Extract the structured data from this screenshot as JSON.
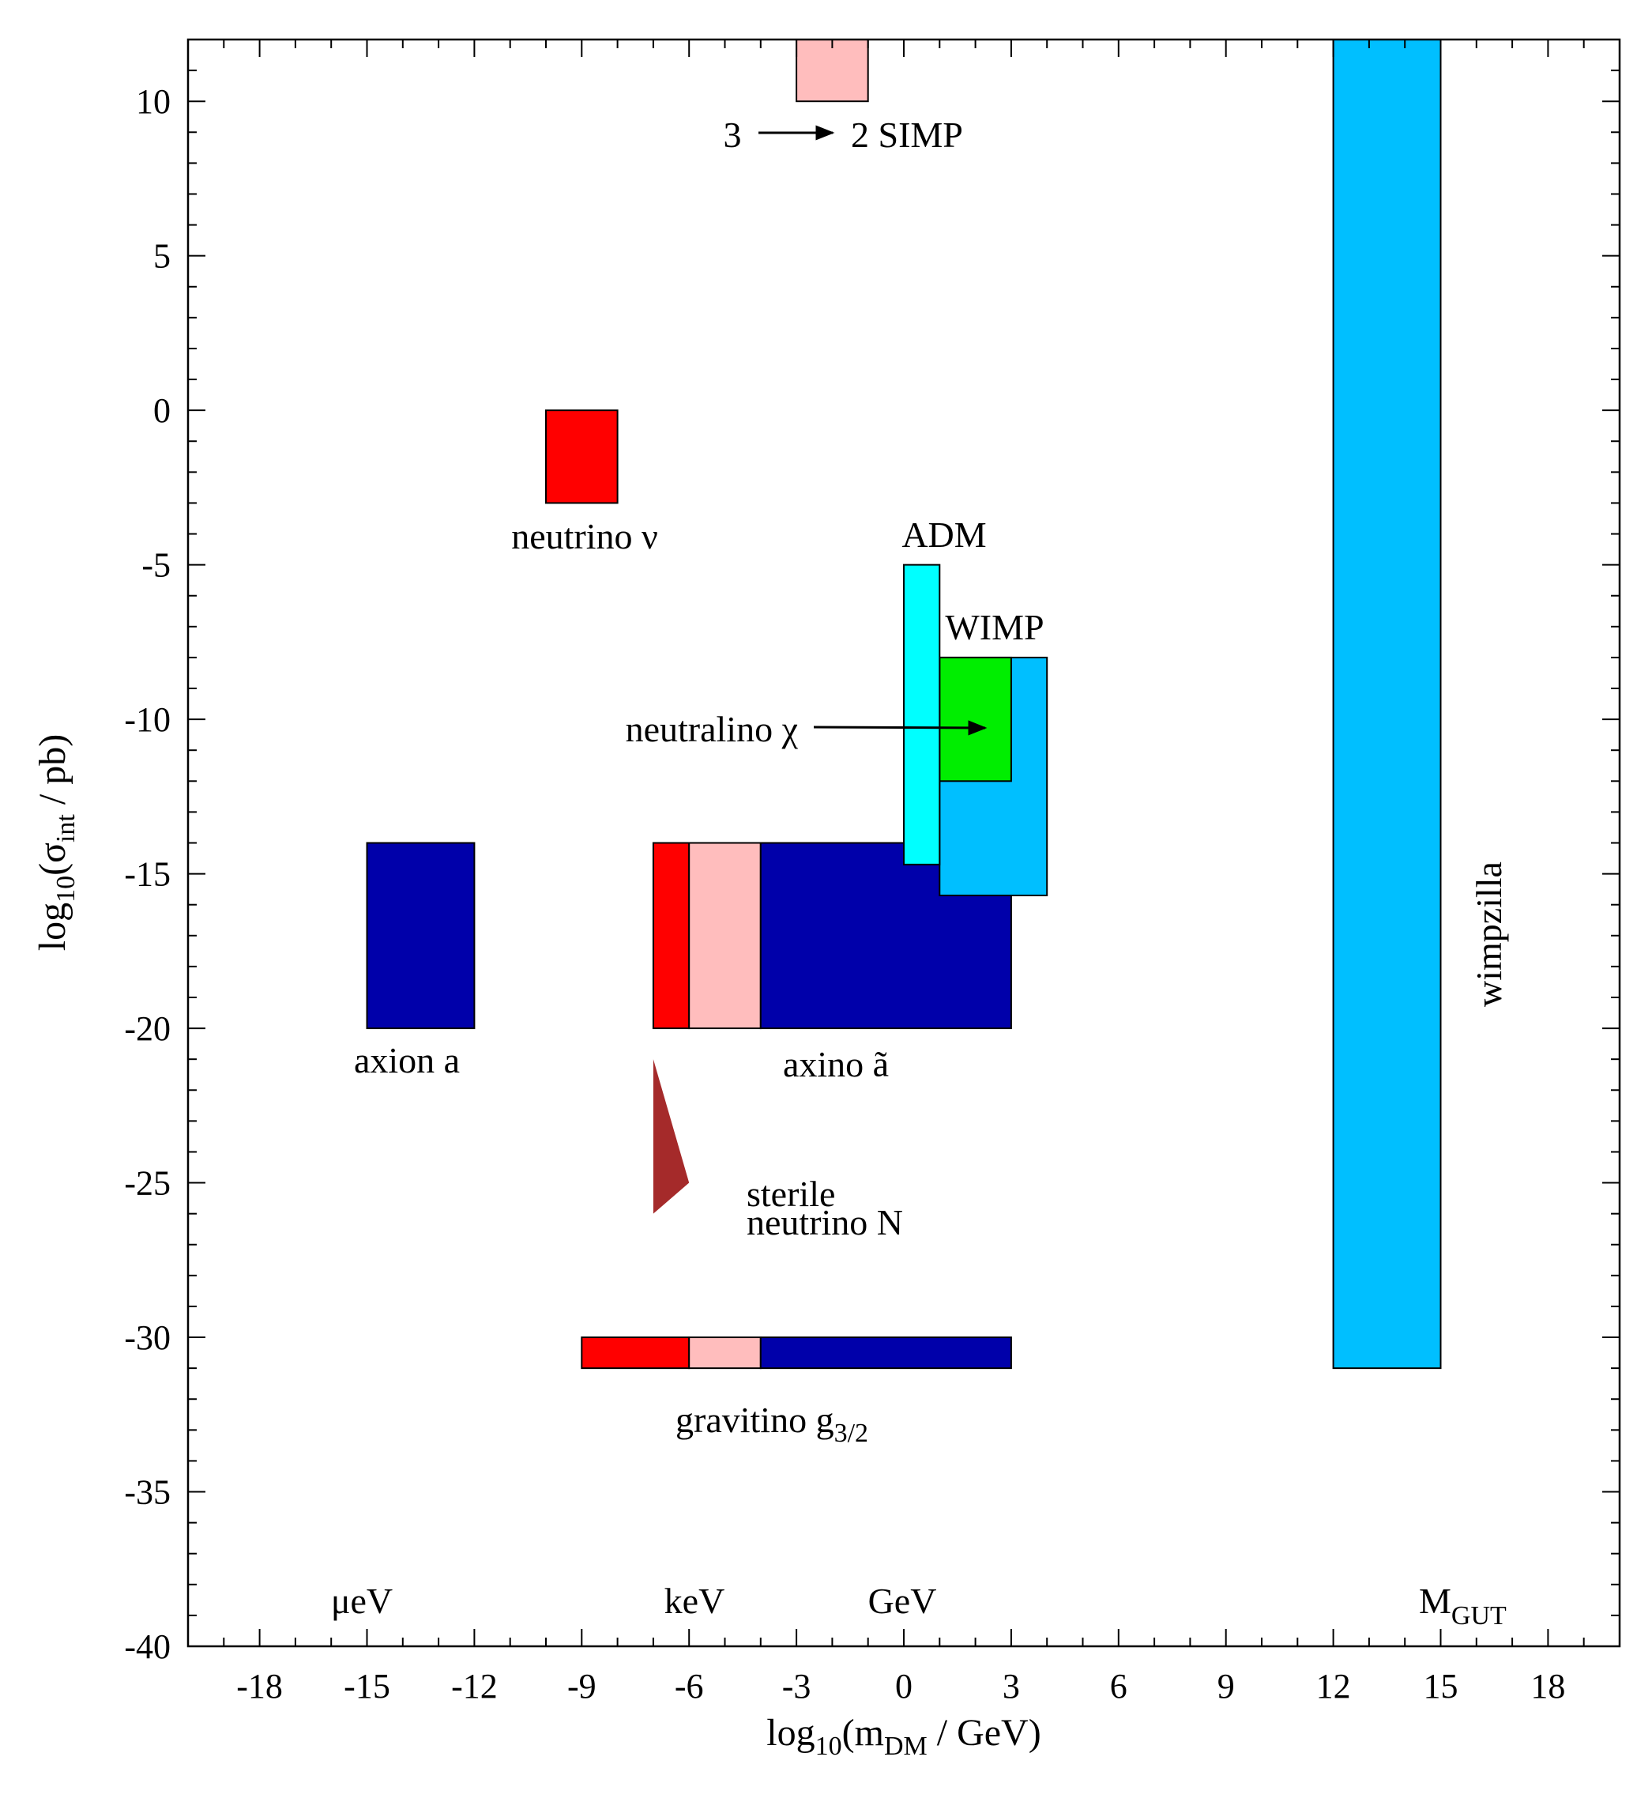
{
  "chart_data": {
    "type": "region-map",
    "xlabel": {
      "main": "log",
      "sub1": "10",
      "mid": "(m",
      "sub2": "DM",
      "tail": " / GeV)"
    },
    "ylabel": {
      "main": "log",
      "sub1": "10",
      "mid": "(σ",
      "sub2": "int",
      "tail": " / pb)"
    },
    "xlim": [
      -20,
      20
    ],
    "ylim": [
      -40,
      12
    ],
    "xticks": [
      -18,
      -15,
      -12,
      -9,
      -6,
      -3,
      0,
      3,
      6,
      9,
      12,
      15,
      18
    ],
    "yticks": [
      10,
      5,
      0,
      -5,
      -10,
      -15,
      -20,
      -25,
      -30,
      -35,
      -40
    ],
    "colors": {
      "red": "#ff0000",
      "pink": "#ffbdbd",
      "navy": "#0000aa",
      "skyblue": "#00bfff",
      "cyan": "#00ffff",
      "green": "#00ee00",
      "maroon": "#a52a2a"
    },
    "regions": [
      {
        "name": "simp-region",
        "x": [
          -3,
          -1
        ],
        "y": [
          10,
          12
        ],
        "color": "pink"
      },
      {
        "name": "neutrino-region",
        "x": [
          -10,
          -8
        ],
        "y": [
          -3,
          0
        ],
        "color": "red"
      },
      {
        "name": "axion-region",
        "x": [
          -15,
          -12
        ],
        "y": [
          -20,
          -14
        ],
        "color": "navy"
      },
      {
        "name": "axino-red-region",
        "x": [
          -7,
          -6
        ],
        "y": [
          -20,
          -14
        ],
        "color": "red"
      },
      {
        "name": "axino-pink-region",
        "x": [
          -6,
          -4
        ],
        "y": [
          -20,
          -14
        ],
        "color": "pink"
      },
      {
        "name": "axino-navy-region",
        "x": [
          -4,
          3
        ],
        "y": [
          -20,
          -14
        ],
        "color": "navy"
      },
      {
        "name": "wimp-region",
        "x": [
          1,
          4
        ],
        "y": [
          -15.7,
          -8
        ],
        "color": "skyblue"
      },
      {
        "name": "neutralino-region",
        "x": [
          1,
          3
        ],
        "y": [
          -12,
          -8
        ],
        "color": "green"
      },
      {
        "name": "adm-region",
        "x": [
          0,
          1
        ],
        "y": [
          -14.7,
          -5
        ],
        "color": "cyan"
      },
      {
        "name": "gravitino-red-region",
        "x": [
          -9,
          -6
        ],
        "y": [
          -31,
          -30
        ],
        "color": "red"
      },
      {
        "name": "gravitino-pink-region",
        "x": [
          -6,
          -4
        ],
        "y": [
          -31,
          -30
        ],
        "color": "pink"
      },
      {
        "name": "gravitino-navy-region",
        "x": [
          -4,
          3
        ],
        "y": [
          -31,
          -30
        ],
        "color": "navy"
      },
      {
        "name": "wimpzilla-region",
        "x": [
          12,
          15
        ],
        "y": [
          -31,
          12
        ],
        "color": "skyblue"
      }
    ],
    "sterile_neutrino_triangle": {
      "points": [
        [
          -7,
          -21
        ],
        [
          -6,
          -25
        ],
        [
          -7,
          -26
        ]
      ],
      "color": "maroon"
    },
    "annotations": {
      "simp_3": "3",
      "simp_2": "2 SIMP",
      "neutrino": "neutrino ν",
      "adm": "ADM",
      "wimp": "WIMP",
      "neutralino": "neutralino χ",
      "axion": "axion a",
      "axino": "axino ã",
      "sterile_line1": "sterile",
      "sterile_line2": "neutrino N",
      "gravitino_main": "gravitino g",
      "gravitino_sub": "3/2",
      "wimpzilla": "wimpzilla",
      "uev": "μeV",
      "kev": "keV",
      "gev": "GeV",
      "mgut_main": "M",
      "mgut_sub": "GUT"
    }
  }
}
